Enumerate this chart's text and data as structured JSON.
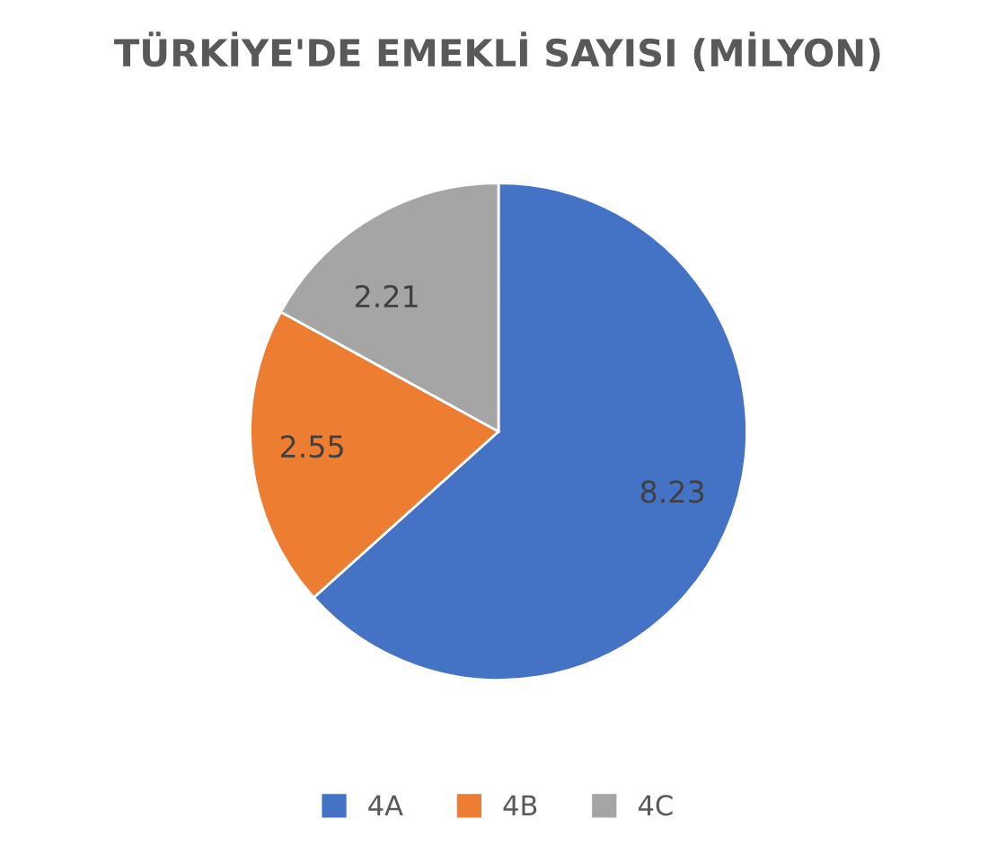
{
  "chart_data": {
    "type": "pie",
    "title": "TÜRKİYE'DE EMEKLİ SAYISI (MİLYON)",
    "categories": [
      "4A",
      "4B",
      "4C"
    ],
    "values": [
      8.23,
      2.55,
      2.21
    ],
    "colors": [
      "#4472c4",
      "#ed7d31",
      "#a5a5a5"
    ],
    "data_labels": true,
    "legend": "bottom"
  }
}
